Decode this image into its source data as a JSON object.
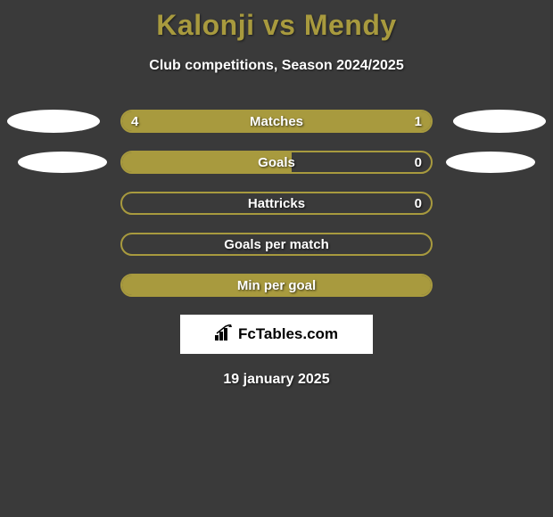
{
  "title": "Kalonji vs Mendy",
  "subtitle": "Club competitions, Season 2024/2025",
  "date": "19 january 2025",
  "logo_text": "FcTables.com",
  "colors": {
    "background": "#3a3a3a",
    "accent": "#a89a3e",
    "text": "#ffffff",
    "avatar": "#ffffff",
    "logo_bg": "#ffffff",
    "logo_text": "#000000"
  },
  "rows": [
    {
      "label": "Matches",
      "left_val": "4",
      "right_val": "1",
      "left_pct": 80,
      "right_pct": 20,
      "show_avatars": true,
      "avatar_size": "r0"
    },
    {
      "label": "Goals",
      "left_val": "",
      "right_val": "0",
      "left_pct": 55,
      "right_pct": 0,
      "show_avatars": true,
      "avatar_size": "r1"
    },
    {
      "label": "Hattricks",
      "left_val": "",
      "right_val": "0",
      "left_pct": 0,
      "right_pct": 0,
      "show_avatars": false
    },
    {
      "label": "Goals per match",
      "left_val": "",
      "right_val": "",
      "left_pct": 0,
      "right_pct": 0,
      "show_avatars": false
    },
    {
      "label": "Min per goal",
      "left_val": "",
      "right_val": "",
      "left_pct": 100,
      "right_pct": 0,
      "show_avatars": false
    }
  ]
}
